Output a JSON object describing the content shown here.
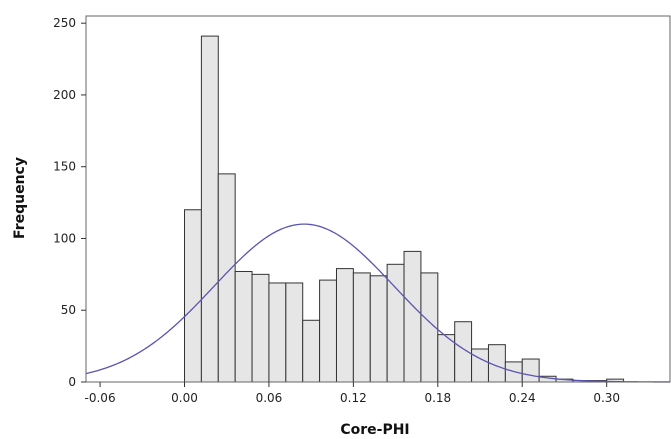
{
  "chart_data": {
    "type": "bar",
    "xlabel": "Core-PHI",
    "ylabel": "Frequency",
    "xlim": [
      -0.07,
      0.345
    ],
    "ylim": [
      0,
      255
    ],
    "xticks": [
      -0.06,
      0.0,
      0.06,
      0.12,
      0.18,
      0.24,
      0.3
    ],
    "xtick_labels": [
      "-0.06",
      "0.00",
      "0.06",
      "0.12",
      "0.18",
      "0.24",
      "0.30"
    ],
    "yticks": [
      0,
      50,
      100,
      150,
      200,
      250
    ],
    "ytick_labels": [
      "0",
      "50",
      "100",
      "150",
      "200",
      "250"
    ],
    "bin_width": 0.012,
    "bin_starts": [
      0.0,
      0.012,
      0.024,
      0.036,
      0.048,
      0.06,
      0.072,
      0.084,
      0.096,
      0.108,
      0.12,
      0.132,
      0.144,
      0.156,
      0.168,
      0.18,
      0.192,
      0.204,
      0.216,
      0.228,
      0.24,
      0.252,
      0.264,
      0.276,
      0.288,
      0.3,
      0.312,
      0.324
    ],
    "values": [
      120,
      241,
      145,
      77,
      75,
      69,
      69,
      43,
      71,
      79,
      76,
      74,
      82,
      91,
      76,
      33,
      42,
      23,
      26,
      14,
      16,
      4,
      2,
      1,
      1,
      2,
      0,
      0
    ],
    "curve": {
      "type": "normal",
      "mean": 0.085,
      "sd": 0.064,
      "peak": 110
    },
    "colors": {
      "bar_fill": "#e6e6e6",
      "bar_stroke": "#333333",
      "curve": "#5a55b0"
    },
    "grid": false,
    "legend": "none"
  }
}
